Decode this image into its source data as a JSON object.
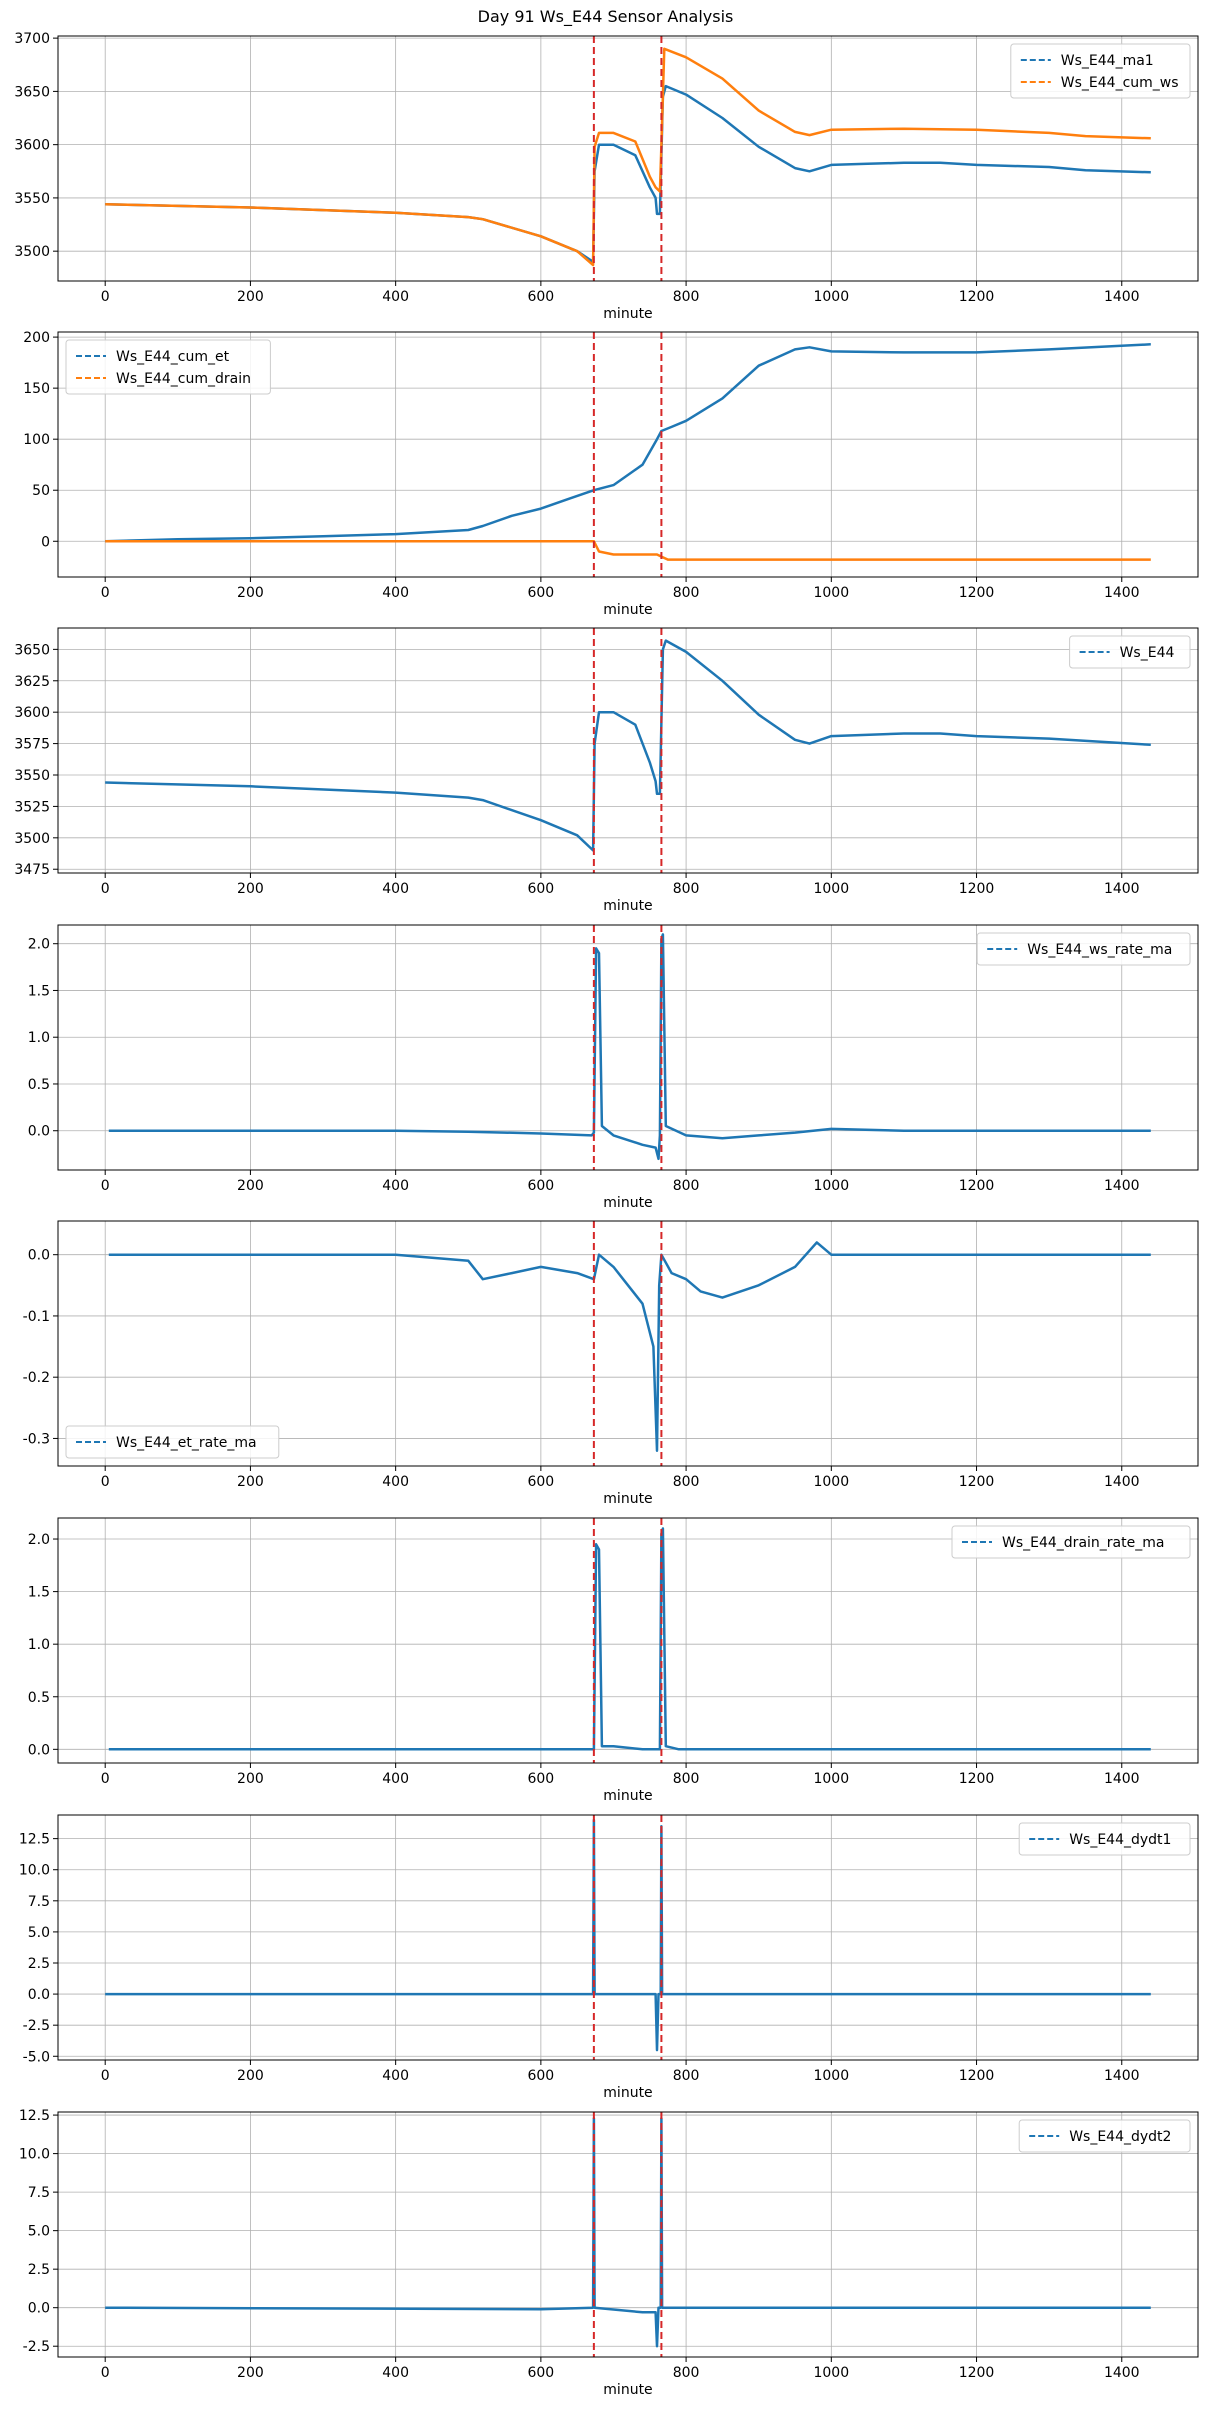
{
  "figure": {
    "title": "Day 91 Ws_E44 Sensor Analysis"
  },
  "colors": {
    "blue": "#1f77b4",
    "orange": "#ff7f0e",
    "event": "#d62728"
  },
  "event_markers": [
    673,
    766
  ],
  "chart_data": [
    {
      "type": "line",
      "xlabel": "minute",
      "xlim": [
        -65,
        1505
      ],
      "ylim": [
        3472,
        3702
      ],
      "xticks": [
        0,
        200,
        400,
        600,
        800,
        1000,
        1200,
        1400
      ],
      "yticks": [
        3500,
        3550,
        3600,
        3650,
        3700
      ],
      "legend_position": "top-right",
      "series": [
        {
          "name": "Ws_E44_ma1",
          "color": "blue",
          "points": [
            [
              0,
              3544
            ],
            [
              200,
              3541
            ],
            [
              400,
              3536
            ],
            [
              500,
              3532
            ],
            [
              520,
              3530
            ],
            [
              600,
              3514
            ],
            [
              650,
              3500
            ],
            [
              672,
              3490
            ],
            [
              674,
              3575
            ],
            [
              680,
              3600
            ],
            [
              700,
              3600
            ],
            [
              730,
              3590
            ],
            [
              750,
              3560
            ],
            [
              758,
              3550
            ],
            [
              760,
              3535
            ],
            [
              764,
              3535
            ],
            [
              768,
              3645
            ],
            [
              772,
              3655
            ],
            [
              800,
              3647
            ],
            [
              850,
              3625
            ],
            [
              900,
              3598
            ],
            [
              950,
              3578
            ],
            [
              970,
              3575
            ],
            [
              1000,
              3581
            ],
            [
              1050,
              3582
            ],
            [
              1100,
              3583
            ],
            [
              1150,
              3583
            ],
            [
              1200,
              3581
            ],
            [
              1300,
              3579
            ],
            [
              1350,
              3576
            ],
            [
              1440,
              3574
            ]
          ]
        },
        {
          "name": "Ws_E44_cum_ws",
          "color": "orange",
          "points": [
            [
              0,
              3544
            ],
            [
              200,
              3541
            ],
            [
              400,
              3536
            ],
            [
              500,
              3532
            ],
            [
              520,
              3530
            ],
            [
              600,
              3514
            ],
            [
              650,
              3500
            ],
            [
              672,
              3487
            ],
            [
              674,
              3598
            ],
            [
              680,
              3611
            ],
            [
              700,
              3611
            ],
            [
              730,
              3603
            ],
            [
              750,
              3570
            ],
            [
              758,
              3560
            ],
            [
              764,
              3556
            ],
            [
              766,
              3600
            ],
            [
              770,
              3690
            ],
            [
              800,
              3682
            ],
            [
              850,
              3662
            ],
            [
              900,
              3632
            ],
            [
              950,
              3612
            ],
            [
              970,
              3609
            ],
            [
              1000,
              3614
            ],
            [
              1100,
              3615
            ],
            [
              1200,
              3614
            ],
            [
              1300,
              3611
            ],
            [
              1350,
              3608
            ],
            [
              1440,
              3606
            ]
          ]
        }
      ]
    },
    {
      "type": "line",
      "xlabel": "minute",
      "xlim": [
        -65,
        1505
      ],
      "ylim": [
        -35,
        205
      ],
      "xticks": [
        0,
        200,
        400,
        600,
        800,
        1000,
        1200,
        1400
      ],
      "yticks": [
        0,
        50,
        100,
        150,
        200
      ],
      "legend_position": "top-left",
      "series": [
        {
          "name": "Ws_E44_cum_et",
          "color": "blue",
          "points": [
            [
              0,
              0
            ],
            [
              100,
              2
            ],
            [
              200,
              3
            ],
            [
              300,
              5
            ],
            [
              400,
              7
            ],
            [
              500,
              11
            ],
            [
              520,
              15
            ],
            [
              560,
              25
            ],
            [
              600,
              32
            ],
            [
              640,
              42
            ],
            [
              673,
              50
            ],
            [
              700,
              55
            ],
            [
              740,
              75
            ],
            [
              760,
              100
            ],
            [
              766,
              108
            ],
            [
              780,
              112
            ],
            [
              800,
              118
            ],
            [
              850,
              140
            ],
            [
              900,
              172
            ],
            [
              950,
              188
            ],
            [
              970,
              190
            ],
            [
              1000,
              186
            ],
            [
              1100,
              185
            ],
            [
              1200,
              185
            ],
            [
              1300,
              188
            ],
            [
              1440,
              193
            ]
          ]
        },
        {
          "name": "Ws_E44_cum_drain",
          "color": "orange",
          "points": [
            [
              0,
              0
            ],
            [
              673,
              0
            ],
            [
              680,
              -10
            ],
            [
              700,
              -13
            ],
            [
              760,
              -13
            ],
            [
              766,
              -15
            ],
            [
              775,
              -18
            ],
            [
              800,
              -18
            ],
            [
              1440,
              -18
            ]
          ]
        }
      ]
    },
    {
      "type": "line",
      "xlabel": "minute",
      "xlim": [
        -65,
        1505
      ],
      "ylim": [
        3472,
        3667
      ],
      "xticks": [
        0,
        200,
        400,
        600,
        800,
        1000,
        1200,
        1400
      ],
      "yticks": [
        3475,
        3500,
        3525,
        3550,
        3575,
        3600,
        3625,
        3650
      ],
      "legend_position": "top-right",
      "series": [
        {
          "name": "Ws_E44",
          "color": "blue",
          "points": [
            [
              0,
              3544
            ],
            [
              200,
              3541
            ],
            [
              400,
              3536
            ],
            [
              500,
              3532
            ],
            [
              520,
              3530
            ],
            [
              600,
              3514
            ],
            [
              650,
              3502
            ],
            [
              672,
              3490
            ],
            [
              674,
              3575
            ],
            [
              680,
              3600
            ],
            [
              700,
              3600
            ],
            [
              730,
              3590
            ],
            [
              750,
              3560
            ],
            [
              758,
              3545
            ],
            [
              760,
              3535
            ],
            [
              764,
              3535
            ],
            [
              768,
              3650
            ],
            [
              772,
              3657
            ],
            [
              800,
              3648
            ],
            [
              850,
              3625
            ],
            [
              900,
              3598
            ],
            [
              950,
              3578
            ],
            [
              970,
              3575
            ],
            [
              1000,
              3581
            ],
            [
              1100,
              3583
            ],
            [
              1150,
              3583
            ],
            [
              1200,
              3581
            ],
            [
              1300,
              3579
            ],
            [
              1440,
              3574
            ]
          ]
        }
      ]
    },
    {
      "type": "line",
      "xlabel": "minute",
      "xlim": [
        -65,
        1505
      ],
      "ylim": [
        -0.42,
        2.2
      ],
      "xticks": [
        0,
        200,
        400,
        600,
        800,
        1000,
        1200,
        1400
      ],
      "yticks": [
        0.0,
        0.5,
        1.0,
        1.5,
        2.0
      ],
      "tick_decimals": 1,
      "legend_position": "top-right",
      "series": [
        {
          "name": "Ws_E44_ws_rate_ma",
          "color": "blue",
          "points": [
            [
              5,
              0
            ],
            [
              400,
              0
            ],
            [
              500,
              -0.01
            ],
            [
              550,
              -0.02
            ],
            [
              600,
              -0.03
            ],
            [
              670,
              -0.05
            ],
            [
              673,
              -0.02
            ],
            [
              676,
              1.95
            ],
            [
              680,
              1.9
            ],
            [
              684,
              0.05
            ],
            [
              700,
              -0.05
            ],
            [
              740,
              -0.15
            ],
            [
              758,
              -0.18
            ],
            [
              762,
              -0.3
            ],
            [
              764,
              -0.05
            ],
            [
              766,
              2.05
            ],
            [
              768,
              2.1
            ],
            [
              772,
              0.05
            ],
            [
              800,
              -0.05
            ],
            [
              850,
              -0.08
            ],
            [
              900,
              -0.05
            ],
            [
              950,
              -0.02
            ],
            [
              1000,
              0.02
            ],
            [
              1100,
              0.0
            ],
            [
              1440,
              0
            ]
          ]
        }
      ]
    },
    {
      "type": "line",
      "xlabel": "minute",
      "xlim": [
        -65,
        1505
      ],
      "ylim": [
        -0.345,
        0.055
      ],
      "xticks": [
        0,
        200,
        400,
        600,
        800,
        1000,
        1200,
        1400
      ],
      "yticks": [
        -0.3,
        -0.2,
        -0.1,
        0.0
      ],
      "tick_decimals": 1,
      "legend_position": "bottom-left",
      "series": [
        {
          "name": "Ws_E44_et_rate_ma",
          "color": "blue",
          "points": [
            [
              5,
              0
            ],
            [
              400,
              0
            ],
            [
              500,
              -0.01
            ],
            [
              520,
              -0.04
            ],
            [
              560,
              -0.03
            ],
            [
              600,
              -0.02
            ],
            [
              650,
              -0.03
            ],
            [
              673,
              -0.04
            ],
            [
              680,
              0
            ],
            [
              700,
              -0.02
            ],
            [
              720,
              -0.05
            ],
            [
              740,
              -0.08
            ],
            [
              755,
              -0.15
            ],
            [
              760,
              -0.32
            ],
            [
              763,
              -0.05
            ],
            [
              766,
              0
            ],
            [
              780,
              -0.03
            ],
            [
              800,
              -0.04
            ],
            [
              820,
              -0.06
            ],
            [
              850,
              -0.07
            ],
            [
              900,
              -0.05
            ],
            [
              950,
              -0.02
            ],
            [
              980,
              0.02
            ],
            [
              1000,
              0
            ],
            [
              1440,
              0
            ]
          ]
        }
      ]
    },
    {
      "type": "line",
      "xlabel": "minute",
      "xlim": [
        -65,
        1505
      ],
      "ylim": [
        -0.13,
        2.2
      ],
      "xticks": [
        0,
        200,
        400,
        600,
        800,
        1000,
        1200,
        1400
      ],
      "yticks": [
        0.0,
        0.5,
        1.0,
        1.5,
        2.0
      ],
      "tick_decimals": 1,
      "legend_position": "top-right",
      "series": [
        {
          "name": "Ws_E44_drain_rate_ma",
          "color": "blue",
          "points": [
            [
              5,
              0
            ],
            [
              673,
              0
            ],
            [
              676,
              1.95
            ],
            [
              680,
              1.9
            ],
            [
              684,
              0.03
            ],
            [
              700,
              0.03
            ],
            [
              740,
              0
            ],
            [
              764,
              0
            ],
            [
              766,
              2.05
            ],
            [
              768,
              2.1
            ],
            [
              772,
              0.03
            ],
            [
              790,
              0
            ],
            [
              1440,
              0
            ]
          ]
        }
      ]
    },
    {
      "type": "line",
      "xlabel": "minute",
      "xlim": [
        -65,
        1505
      ],
      "ylim": [
        -5.3,
        14.4
      ],
      "xticks": [
        0,
        200,
        400,
        600,
        800,
        1000,
        1200,
        1400
      ],
      "yticks": [
        -5.0,
        -2.5,
        0.0,
        2.5,
        5.0,
        7.5,
        10.0,
        12.5
      ],
      "tick_decimals": 1,
      "legend_position": "top-right",
      "series": [
        {
          "name": "Ws_E44_dydt1",
          "color": "blue",
          "points": [
            [
              0,
              0
            ],
            [
              672,
              0
            ],
            [
              673,
              14
            ],
            [
              674,
              0
            ],
            [
              758,
              0
            ],
            [
              760,
              -4.5
            ],
            [
              762,
              0
            ],
            [
              765,
              0
            ],
            [
              766,
              13.5
            ],
            [
              767,
              0
            ],
            [
              1440,
              0
            ]
          ]
        }
      ]
    },
    {
      "type": "line",
      "xlabel": "minute",
      "xlim": [
        -65,
        1505
      ],
      "ylim": [
        -3.2,
        12.7
      ],
      "xticks": [
        0,
        200,
        400,
        600,
        800,
        1000,
        1200,
        1400
      ],
      "yticks": [
        -2.5,
        0.0,
        2.5,
        5.0,
        7.5,
        10.0,
        12.5
      ],
      "tick_decimals": 1,
      "legend_position": "top-right",
      "series": [
        {
          "name": "Ws_E44_dydt2",
          "color": "blue",
          "points": [
            [
              0,
              0
            ],
            [
              600,
              -0.1
            ],
            [
              672,
              0
            ],
            [
              673,
              12.3
            ],
            [
              674,
              0
            ],
            [
              740,
              -0.3
            ],
            [
              758,
              -0.3
            ],
            [
              760,
              -2.5
            ],
            [
              762,
              0
            ],
            [
              765,
              0
            ],
            [
              766,
              12.3
            ],
            [
              767,
              0
            ],
            [
              1440,
              0
            ]
          ]
        }
      ]
    }
  ]
}
